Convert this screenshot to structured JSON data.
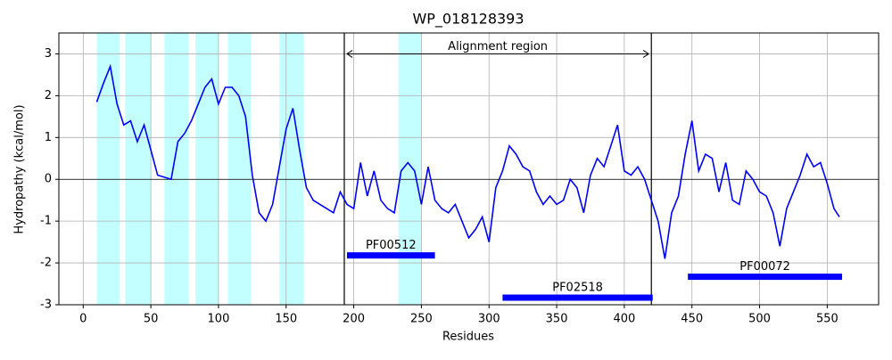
{
  "chart_data": {
    "type": "line",
    "title": "WP_018128393",
    "x_label": "Residues",
    "y_label": "Hydropathy (kcal/mol)",
    "xlim": [
      -18,
      588
    ],
    "ylim": [
      -3,
      3.5
    ],
    "xticks": [
      0,
      50,
      100,
      150,
      200,
      250,
      300,
      350,
      400,
      450,
      500,
      550
    ],
    "yticks": [
      -3,
      -2,
      -1,
      0,
      1,
      2,
      3
    ],
    "grid": true,
    "hlines": [
      0
    ],
    "vlines": [
      193,
      420
    ],
    "regions": [
      {
        "start": 10,
        "end": 27
      },
      {
        "start": 31,
        "end": 50
      },
      {
        "start": 60,
        "end": 78
      },
      {
        "start": 83,
        "end": 100
      },
      {
        "start": 107,
        "end": 124
      },
      {
        "start": 145,
        "end": 163
      },
      {
        "start": 233,
        "end": 250
      }
    ],
    "region_color": "#c4ffff",
    "annotation": {
      "text": "Alignment region",
      "start": 195,
      "end": 418,
      "y": 3
    },
    "domains": [
      {
        "name": "PF00512",
        "start": 195,
        "end": 260,
        "y": -1.82
      },
      {
        "name": "PF02518",
        "start": 310,
        "end": 421,
        "y": -2.83
      },
      {
        "name": "PF00072",
        "start": 447,
        "end": 561,
        "y": -2.33
      }
    ],
    "domain_color": "#0000ff",
    "series": [
      {
        "color": "#0000ff",
        "x": [
          10,
          15,
          20,
          25,
          30,
          35,
          40,
          45,
          50,
          55,
          60,
          65,
          70,
          75,
          80,
          85,
          90,
          95,
          100,
          105,
          110,
          115,
          120,
          125,
          130,
          135,
          140,
          145,
          150,
          155,
          160,
          165,
          170,
          175,
          180,
          185,
          190,
          195,
          200,
          205,
          210,
          215,
          220,
          225,
          230,
          235,
          240,
          245,
          250,
          255,
          260,
          265,
          270,
          275,
          280,
          285,
          290,
          295,
          300,
          305,
          310,
          315,
          320,
          325,
          330,
          335,
          340,
          345,
          350,
          355,
          360,
          365,
          370,
          375,
          380,
          385,
          390,
          395,
          400,
          405,
          410,
          415,
          420,
          425,
          430,
          435,
          440,
          445,
          450,
          455,
          460,
          465,
          470,
          475,
          480,
          485,
          490,
          495,
          500,
          505,
          510,
          515,
          520,
          525,
          530,
          535,
          540,
          545,
          550,
          555,
          559
        ],
        "values": [
          1.85,
          2.3,
          2.7,
          1.8,
          1.3,
          1.4,
          0.9,
          1.3,
          0.7,
          0.1,
          0.05,
          0.0,
          0.9,
          1.1,
          1.4,
          1.8,
          2.2,
          2.4,
          1.8,
          2.2,
          2.2,
          2.0,
          1.5,
          0.1,
          -0.8,
          -1.0,
          -0.6,
          0.3,
          1.2,
          1.7,
          0.7,
          -0.2,
          -0.5,
          -0.6,
          -0.7,
          -0.8,
          -0.3,
          -0.6,
          -0.7,
          0.4,
          -0.4,
          0.2,
          -0.5,
          -0.7,
          -0.8,
          0.2,
          0.4,
          0.2,
          -0.6,
          0.3,
          -0.5,
          -0.7,
          -0.8,
          -0.6,
          -1.0,
          -1.4,
          -1.2,
          -0.9,
          -1.5,
          -0.2,
          0.2,
          0.8,
          0.6,
          0.3,
          0.2,
          -0.3,
          -0.6,
          -0.4,
          -0.6,
          -0.5,
          0.0,
          -0.2,
          -0.8,
          0.1,
          0.5,
          0.3,
          0.8,
          1.3,
          0.2,
          0.1,
          0.3,
          0.0,
          -0.5,
          -1.0,
          -1.9,
          -0.8,
          -0.4,
          0.6,
          1.4,
          0.2,
          0.6,
          0.5,
          -0.3,
          0.4,
          -0.5,
          -0.6,
          0.2,
          0.0,
          -0.3,
          -0.4,
          -0.8,
          -1.6,
          -0.7,
          -0.3,
          0.1,
          0.6,
          0.3,
          0.4,
          -0.1,
          -0.7,
          -0.9
        ]
      }
    ]
  }
}
